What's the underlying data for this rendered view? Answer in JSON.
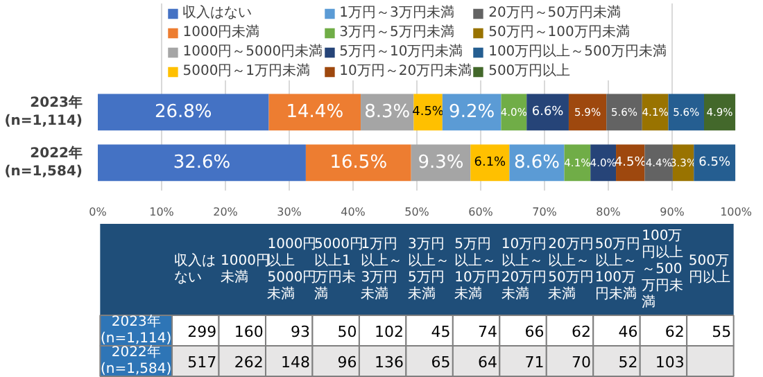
{
  "chart_data": [
    {
      "type": "bar",
      "orientation": "horizontal",
      "stacked": true,
      "legend": "top",
      "grid": "x",
      "categories": [
        "2023年(n=1,114)",
        "2022年(n=1,584)"
      ],
      "xlim": [
        0,
        100
      ],
      "xticks": [
        {
          "value": 0,
          "label": "0%"
        },
        {
          "value": 10,
          "label": "10%"
        },
        {
          "value": 20,
          "label": "20%"
        },
        {
          "value": 30,
          "label": "30%"
        },
        {
          "value": 40,
          "label": "40%"
        },
        {
          "value": 50,
          "label": "50%"
        },
        {
          "value": 60,
          "label": "60%"
        },
        {
          "value": 70,
          "label": "70%"
        },
        {
          "value": 80,
          "label": "80%"
        },
        {
          "value": 90,
          "label": "90%"
        },
        {
          "value": 100,
          "label": "100%"
        }
      ],
      "series": [
        {
          "name": "収入はない",
          "color": "#4472c4",
          "values": [
            26.8,
            32.6
          ],
          "value_labels": [
            "26.8%",
            "32.6%"
          ]
        },
        {
          "name": "1000円未満",
          "color": "#ed7d31",
          "values": [
            14.4,
            16.5
          ],
          "value_labels": [
            "14.4%",
            "16.5%"
          ]
        },
        {
          "name": "1000円～5000円未満",
          "color": "#a5a5a5",
          "values": [
            8.3,
            9.3
          ],
          "value_labels": [
            "8.3%",
            "9.3%"
          ]
        },
        {
          "name": "5000円～1万円未満",
          "color": "#ffc000",
          "values": [
            4.5,
            6.1
          ],
          "value_labels": [
            "4.5%",
            "6.1%"
          ]
        },
        {
          "name": "1万円～3万円未満",
          "color": "#5b9bd5",
          "values": [
            9.2,
            8.6
          ],
          "value_labels": [
            "9.2%",
            "8.6%"
          ]
        },
        {
          "name": "3万円～5万円未満",
          "color": "#70ad47",
          "values": [
            4.0,
            4.1
          ],
          "value_labels": [
            "4.0%",
            "4.1%"
          ]
        },
        {
          "name": "5万円～10万円未満",
          "color": "#264478",
          "values": [
            6.6,
            4.0
          ],
          "value_labels": [
            "6.6%",
            "4.0%"
          ]
        },
        {
          "name": "10万円～20万円未満",
          "color": "#9e480e",
          "values": [
            5.9,
            4.5
          ],
          "value_labels": [
            "5.9%",
            "4.5%"
          ]
        },
        {
          "name": "20万円～50万円未満",
          "color": "#636363",
          "values": [
            5.6,
            4.4
          ],
          "value_labels": [
            "5.6%",
            "4.4%"
          ]
        },
        {
          "name": "50万円～100万円未満",
          "color": "#997300",
          "values": [
            4.1,
            3.3
          ],
          "value_labels": [
            "4.1%",
            "3.3%"
          ]
        },
        {
          "name": "100万円以上～500万円未満",
          "color": "#255e91",
          "values": [
            5.6,
            6.5
          ],
          "value_labels": [
            "5.6%",
            "6.5%"
          ]
        },
        {
          "name": "500万円以上",
          "color": "#43682b",
          "values": [
            4.9,
            null
          ],
          "value_labels": [
            "4.9%",
            null
          ]
        }
      ]
    },
    {
      "type": "heatmap",
      "grid": true,
      "data_labels": true,
      "categories": [
        "収入はない",
        "1000円未満",
        "1000円以上5000円未満",
        "5000円以上1万円未満",
        "1万円以上～3万円未満",
        "3万円以上～5万円未満",
        "5万円以上～10万円未満",
        "10万円以上～20万円未満",
        "20万円以上～50万円未満",
        "50万円以上～100万円未満",
        "100万円以上～500万円未満",
        "500万円以上"
      ],
      "y_categories": [
        "2023年(n=1,114)",
        "2022年(n=1,584)"
      ],
      "cells": [
        [
          299,
          160,
          93,
          50,
          102,
          45,
          74,
          66,
          62,
          46,
          62,
          55
        ],
        [
          517,
          262,
          148,
          96,
          136,
          65,
          64,
          71,
          70,
          52,
          103,
          null
        ]
      ]
    }
  ]
}
